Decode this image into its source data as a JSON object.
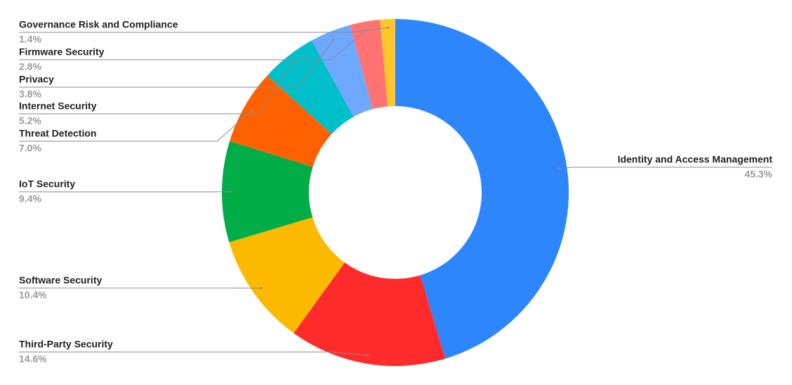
{
  "chart_data": {
    "type": "donut",
    "categories": [
      "Identity and Access Management",
      "Third-Party Security",
      "Software Security",
      "IoT Security",
      "Threat Detection",
      "Internet Security",
      "Privacy",
      "Firmware Security",
      "Governance Risk and Compliance"
    ],
    "values": [
      45.3,
      14.6,
      10.4,
      9.4,
      7.0,
      5.2,
      3.8,
      2.8,
      1.4
    ],
    "value_labels": [
      "45.3%",
      "14.6%",
      "10.4%",
      "9.4%",
      "7.0%",
      "5.2%",
      "3.8%",
      "2.8%",
      "1.4%"
    ],
    "colors": [
      "#2e86fc",
      "#ff2a2a",
      "#fbba00",
      "#00ad47",
      "#ff6100",
      "#00bfc8",
      "#6fa8ff",
      "#ff7373",
      "#ffc629"
    ]
  }
}
